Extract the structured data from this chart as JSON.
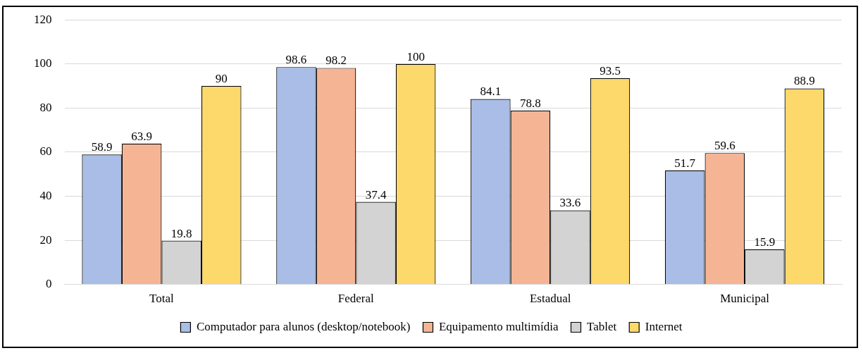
{
  "chart_data": {
    "type": "bar",
    "categories": [
      "Total",
      "Federal",
      "Estadual",
      "Municipal"
    ],
    "series": [
      {
        "name": "Computador para alunos (desktop/notebook)",
        "color": "#a9bde6",
        "values": [
          58.9,
          98.6,
          84.1,
          51.7
        ]
      },
      {
        "name": "Equipamento multimídia",
        "color": "#f5b595",
        "values": [
          63.9,
          98.2,
          78.8,
          59.6
        ]
      },
      {
        "name": "Tablet",
        "color": "#d3d3d3",
        "values": [
          19.8,
          37.4,
          33.6,
          15.9
        ]
      },
      {
        "name": "Internet",
        "color": "#fdd86a",
        "values": [
          90,
          100,
          93.5,
          88.9
        ]
      }
    ],
    "ylim": [
      0,
      120
    ],
    "yticks": [
      0,
      20,
      40,
      60,
      80,
      100,
      120
    ],
    "grid": "y",
    "legend": "bottom",
    "data_labels": true
  }
}
